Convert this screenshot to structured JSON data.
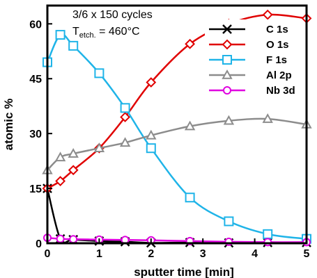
{
  "chart_data": {
    "type": "line",
    "xlabel": "sputter time [min]",
    "ylabel": "atomic %",
    "xlim": [
      0,
      5
    ],
    "ylim": [
      0,
      65
    ],
    "xticks": [
      0,
      1,
      2,
      3,
      4,
      5
    ],
    "yticks": [
      0,
      15,
      30,
      45,
      60
    ],
    "grid": false,
    "legend": "top-right",
    "annotation": {
      "line1": "3/6 x 150 cycles",
      "line2_main": "T",
      "line2_sub": "etch.",
      "line2_rest": " = 460°C"
    },
    "series": [
      {
        "name": "C 1s",
        "marker": "x",
        "color": "#000000",
        "x": [
          0,
          0.25,
          0.5,
          1,
          1.5,
          2,
          2.75,
          3.5,
          4.25,
          5
        ],
        "y": [
          15,
          1.2,
          1.0,
          0.6,
          0.4,
          0.1,
          0.2,
          0.1,
          0.2,
          0.2
        ]
      },
      {
        "name": "O 1s",
        "marker": "diamond",
        "color": "#e00000",
        "x": [
          0,
          0.25,
          0.5,
          1,
          1.5,
          2,
          2.75,
          3.5,
          4.25,
          5
        ],
        "y": [
          15,
          17,
          20,
          26,
          34.5,
          44,
          54.5,
          60,
          62.5,
          61.5
        ]
      },
      {
        "name": "F 1s",
        "marker": "square",
        "color": "#1fb4e8",
        "x": [
          0,
          0.25,
          0.5,
          1,
          1.5,
          2,
          2.75,
          3.5,
          4.25,
          5
        ],
        "y": [
          49.5,
          57,
          54,
          46.5,
          37,
          26,
          12.5,
          6,
          2.5,
          1.2
        ]
      },
      {
        "name": "Al 2p",
        "marker": "triangle",
        "color": "#8c8c8c",
        "x": [
          0,
          0.25,
          0.5,
          1,
          1.5,
          2,
          2.75,
          3.5,
          4.25,
          5
        ],
        "y": [
          20,
          23.5,
          24.5,
          26,
          27.5,
          29.5,
          32,
          33.5,
          34,
          32.5
        ]
      },
      {
        "name": "Nb 3d",
        "marker": "circle",
        "color": "#e000e0",
        "x": [
          0,
          0.25,
          0.5,
          1,
          1.5,
          2,
          2.75,
          3.5,
          4.25,
          5
        ],
        "y": [
          1.5,
          1.2,
          1.1,
          1.0,
          0.9,
          0.8,
          0.6,
          0.4,
          0.3,
          0.3
        ]
      }
    ]
  }
}
